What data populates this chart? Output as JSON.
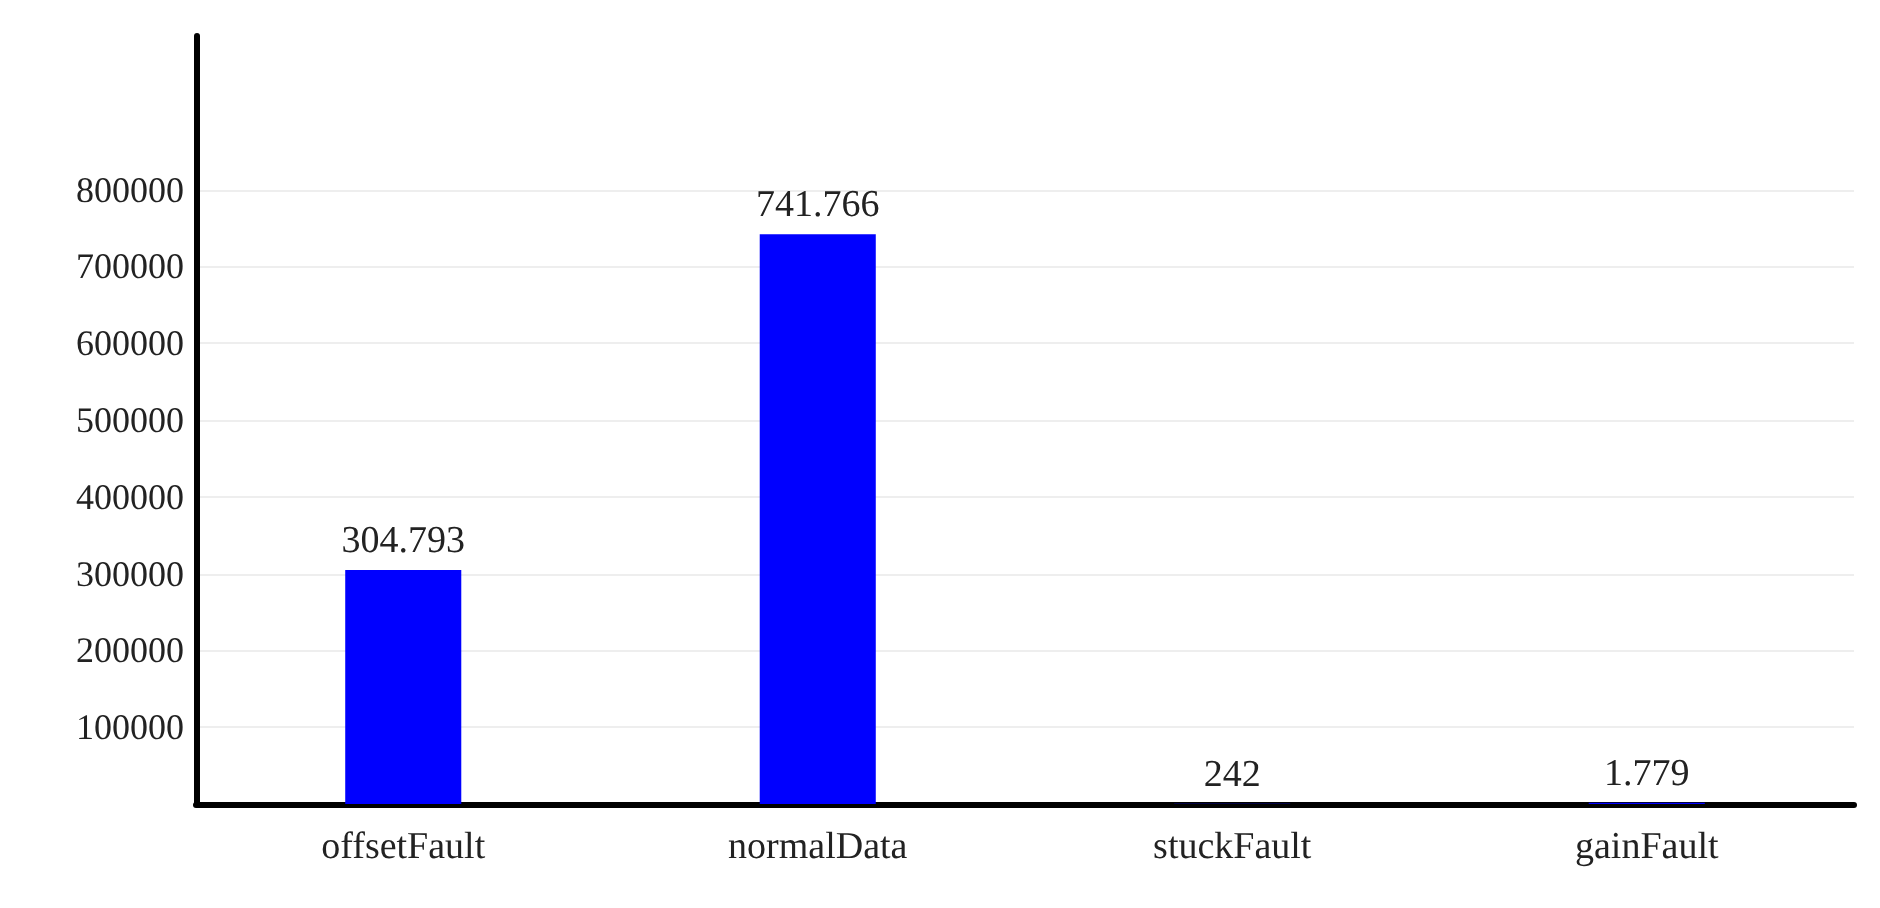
{
  "chart_data": {
    "type": "bar",
    "categories": [
      "offsetFault",
      "normalData",
      "stuckFault",
      "gainFault"
    ],
    "values": [
      304793,
      741766,
      242,
      1779
    ],
    "value_labels": [
      "304.793",
      "741.766",
      "242",
      "1.779"
    ],
    "color": "#0000ff",
    "ylim": [
      0,
      1000000
    ],
    "yticks": [
      100000,
      200000,
      300000,
      400000,
      500000,
      600000,
      700000,
      800000
    ],
    "grid": "y"
  }
}
